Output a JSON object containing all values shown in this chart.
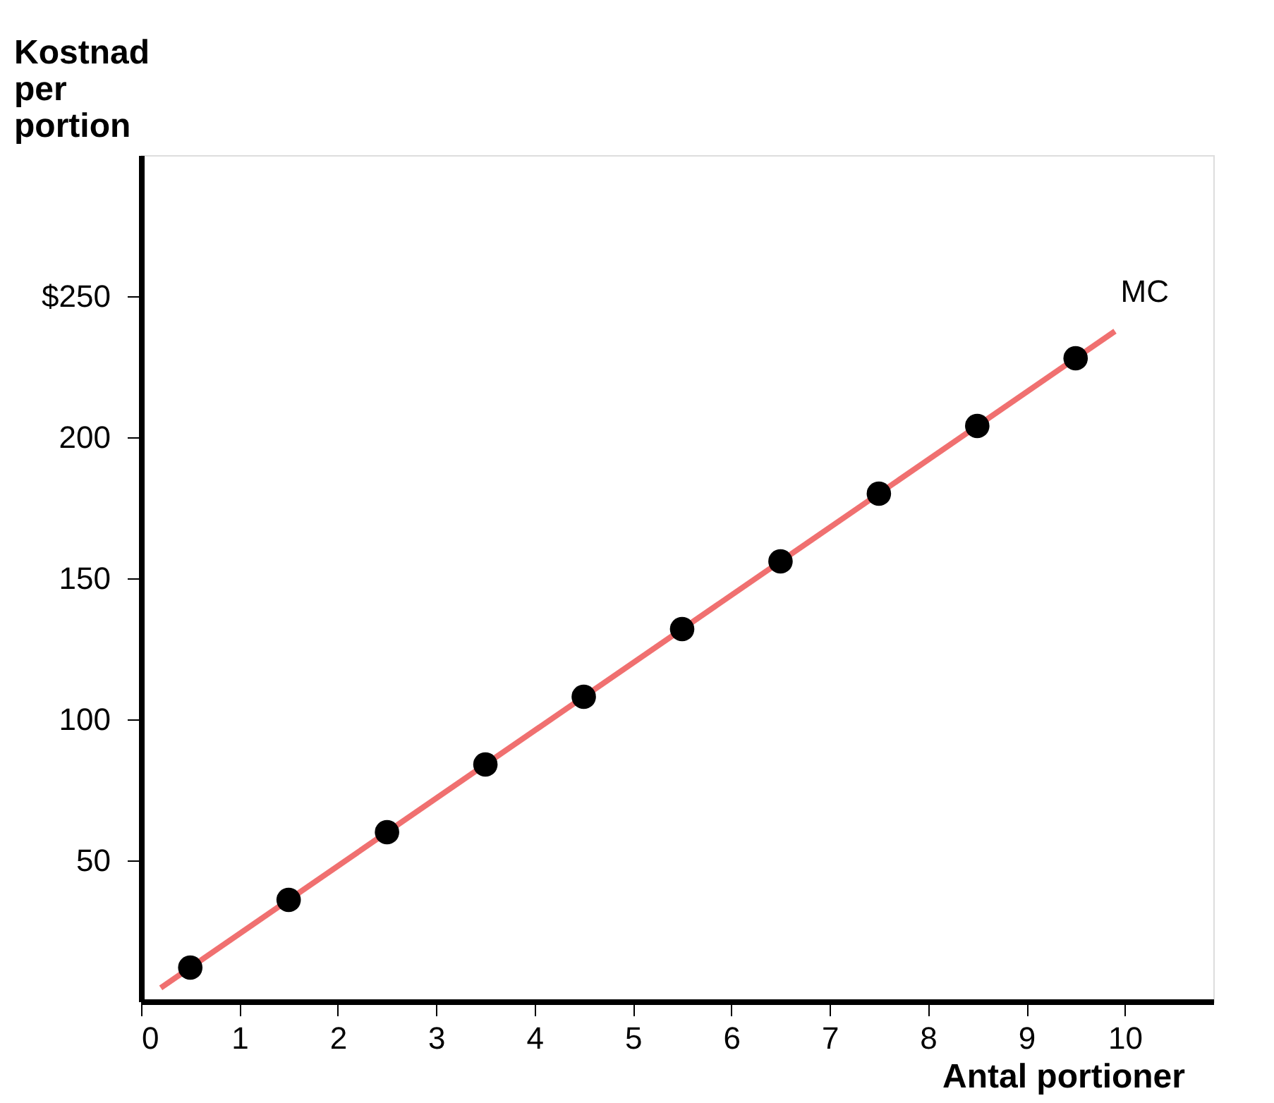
{
  "chart_data": {
    "type": "scatter",
    "xlabel": "Antal portioner",
    "ylabel": "Kostnad per portion",
    "series": [
      {
        "name": "MC",
        "type": "line",
        "color": "#f07070",
        "x": [
          0.2,
          9.9
        ],
        "values": [
          4.8,
          237.6
        ]
      },
      {
        "color": "#000000",
        "marker": "circle",
        "x": [
          0.5,
          1.5,
          2.5,
          3.5,
          4.5,
          5.5,
          6.5,
          7.5,
          8.5,
          9.5
        ],
        "values": [
          12,
          36,
          60,
          84,
          108,
          132,
          156,
          180,
          204,
          228
        ]
      }
    ],
    "xlim": [
      0,
      10.9
    ],
    "ylim": [
      0,
      300
    ],
    "xticks": [
      0,
      1,
      2,
      3,
      4,
      5,
      6,
      7,
      8,
      9,
      10
    ],
    "yticks": [
      50,
      100,
      150,
      {
        "value": 200,
        "label": "200"
      },
      {
        "value": 250,
        "label": "$250"
      }
    ],
    "grid": false,
    "legend": false
  }
}
